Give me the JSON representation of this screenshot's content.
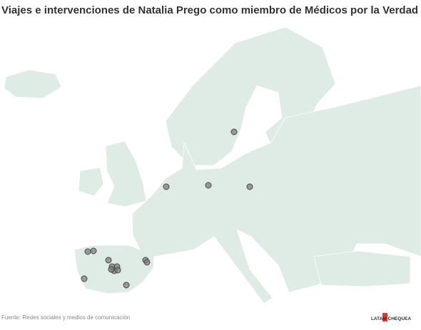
{
  "header": {
    "title": "Viajes e intervenciones de Natalia Prego como miembro de Médicos por la Verdad"
  },
  "footer": {
    "source": "Fuente: Redes sociales y medios de comunicación",
    "logo": "LATAM CHEQUEA"
  }
}
